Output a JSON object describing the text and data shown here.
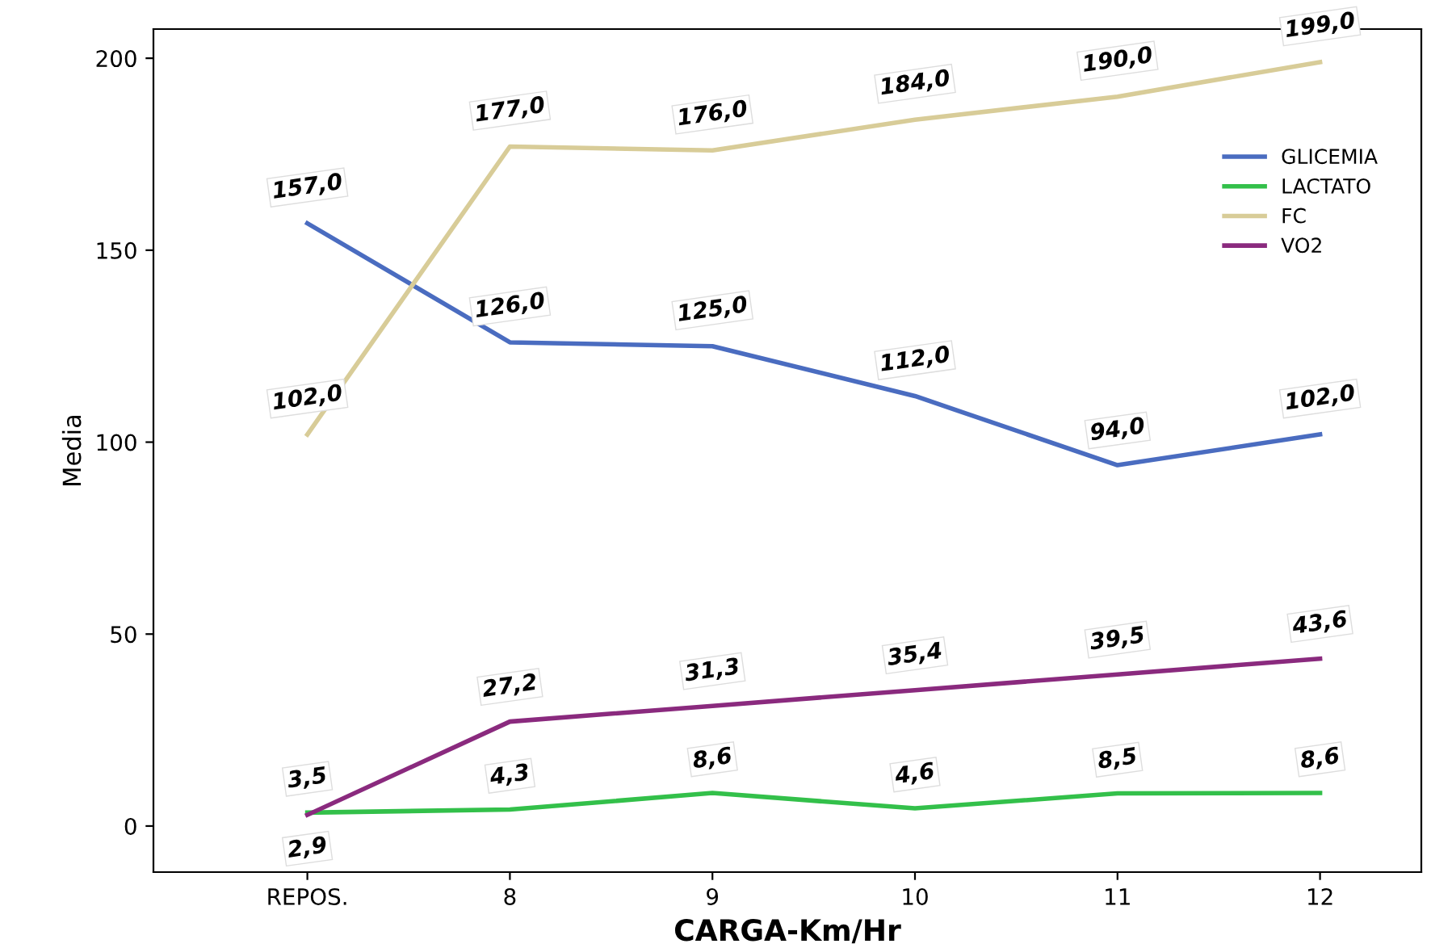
{
  "chart_data": {
    "type": "line",
    "xlabel": "CARGA-Km/Hr",
    "ylabel": "Media",
    "categories": [
      "REPOS.",
      "8",
      "9",
      "10",
      "11",
      "12"
    ],
    "series": [
      {
        "name": "GLICEMIA",
        "color": "#4a6cc0",
        "values": [
          157.0,
          126.0,
          125.0,
          112.0,
          94.0,
          102.0
        ],
        "value_labels": [
          "157,0",
          "126,0",
          "125,0",
          "112,0",
          "94,0",
          "102,0"
        ]
      },
      {
        "name": "LACTATO",
        "color": "#33c04a",
        "values": [
          3.5,
          4.3,
          8.6,
          4.6,
          8.5,
          8.6
        ],
        "value_labels": [
          "3,5",
          "4,3",
          "8,6",
          "4,6",
          "8,5",
          "8,6"
        ]
      },
      {
        "name": "FC",
        "color": "#d8cc98",
        "values": [
          102.0,
          177.0,
          176.0,
          184.0,
          190.0,
          199.0
        ],
        "value_labels": [
          "102,0",
          "177,0",
          "176,0",
          "184,0",
          "190,0",
          "199,0"
        ]
      },
      {
        "name": "VO2",
        "color": "#8a2a7e",
        "values": [
          2.9,
          27.2,
          31.3,
          35.4,
          39.5,
          43.6
        ],
        "value_labels": [
          "2,9",
          "27,2",
          "31,3",
          "35,4",
          "39,5",
          "43,6"
        ]
      }
    ],
    "ylim": [
      -12,
      207.6
    ],
    "yticks": [
      0,
      50,
      100,
      150,
      200
    ],
    "grid": false,
    "legend": "top right",
    "marker": "none",
    "line_style": "solid"
  }
}
